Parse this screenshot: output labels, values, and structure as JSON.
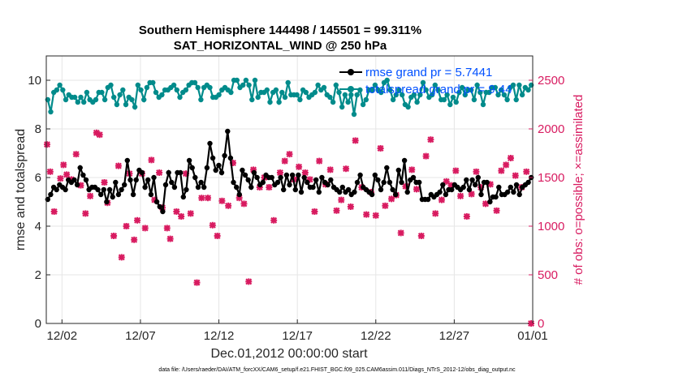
{
  "chart_data": {
    "type": "line",
    "title": "Southern Hemisphere 144498 / 145501 = 99.311%",
    "subtitle": "SAT_HORIZONTAL_WIND @ 250 hPa",
    "xlabel": "Dec.01,2012 00:00:00 start",
    "ylabel": "rmse and totalspread",
    "y2label": "# of obs: o=possible; ×=assimilated",
    "footer": "data file: /Users/raeder/DAI/ATM_forcXX/CAM6_setup/f.e21.FHIST_BGC.f09_025.CAM6assim.011/Diags_NTrS_2012-12/obs_diag_output.nc",
    "xlim": [
      0,
      31
    ],
    "ylim": [
      0,
      11
    ],
    "y2lim": [
      0,
      2750
    ],
    "x_ticks": [
      {
        "x": 1,
        "label": "12/02"
      },
      {
        "x": 6,
        "label": "12/07"
      },
      {
        "x": 11,
        "label": "12/12"
      },
      {
        "x": 16,
        "label": "12/17"
      },
      {
        "x": 21,
        "label": "12/22"
      },
      {
        "x": 26,
        "label": "12/27"
      },
      {
        "x": 31,
        "label": "01/01"
      }
    ],
    "y_ticks": [
      0,
      2,
      4,
      6,
      8,
      10
    ],
    "y2_ticks": [
      0,
      500,
      1000,
      1500,
      2000,
      2500
    ],
    "grid": true,
    "legend_position": "top-right",
    "colors": {
      "rmse": "#000000",
      "spread": "#008b8b",
      "obs": "#d81b60",
      "legend_text": "#0050ff"
    },
    "series": [
      {
        "name": "rmse grand pr = 5.7441",
        "axis": "left",
        "values": [
          5.1,
          5.3,
          5.6,
          5.5,
          5.7,
          5.6,
          5.5,
          5.9,
          5.8,
          5.9,
          5.7,
          6.4,
          6.1,
          5.9,
          5.5,
          5.6,
          5.6,
          5.5,
          5.3,
          5.5,
          5.0,
          5.5,
          5.2,
          5.8,
          5.3,
          5.5,
          5.7,
          6.7,
          5.9,
          5.3,
          5.9,
          6.3,
          6.2,
          5.6,
          5.9,
          5.3,
          6.0,
          5.0,
          4.8,
          4.6,
          5.7,
          6.2,
          5.8,
          5.6,
          6.2,
          6.2,
          5.2,
          5.5,
          6.7,
          6.4,
          6.0,
          5.6,
          5.8,
          5.6,
          6.4,
          7.4,
          6.8,
          6.3,
          6.5,
          6.2,
          6.9,
          7.9,
          6.8,
          5.8,
          5.6,
          5.3,
          6.3,
          6.1,
          5.9,
          5.6,
          6.2,
          6.0,
          5.7,
          5.8,
          6.1,
          6.0,
          6.0,
          5.7,
          5.8,
          6.0,
          5.5,
          6.1,
          5.7,
          6.1,
          5.5,
          6.1,
          5.4,
          6.0,
          5.8,
          5.6,
          5.6,
          5.9,
          5.4,
          6.0,
          5.8,
          5.7,
          5.9,
          5.6,
          5.5,
          5.4,
          5.6,
          5.4,
          5.5,
          5.3,
          5.4,
          5.8,
          6.1,
          5.6,
          5.5,
          5.4,
          5.3,
          6.1,
          5.9,
          5.5,
          5.8,
          6.4,
          5.8,
          5.5,
          5.3,
          6.3,
          5.8,
          6.7,
          5.4,
          5.9,
          6.0,
          5.8,
          5.8,
          5.1,
          5.1,
          5.1,
          5.3,
          5.2,
          5.3,
          5.4,
          5.7,
          5.3,
          5.5,
          5.5,
          5.7,
          5.6,
          5.5,
          5.6,
          5.9,
          5.5,
          5.9,
          5.7,
          6.0,
          5.3,
          5.8,
          5.8,
          5.0,
          5.2,
          5.2,
          5.6,
          5.3,
          5.3,
          5.4,
          5.6,
          5.4,
          5.7,
          5.3,
          5.6,
          5.7,
          5.8,
          6.0
        ]
      },
      {
        "name": "totalspread grand pr = 9.44",
        "axis": "left",
        "values": [
          9.2,
          8.7,
          9.5,
          9.6,
          9.8,
          9.6,
          9.2,
          9.4,
          9.3,
          9.3,
          9.1,
          9.3,
          9.1,
          9.5,
          9.2,
          9.1,
          9.2,
          9.5,
          9.5,
          9.2,
          9.7,
          9.8,
          9.3,
          9.0,
          9.4,
          9.6,
          9.0,
          9.3,
          9.2,
          8.9,
          9.8,
          9.6,
          9.2,
          9.7,
          9.9,
          9.9,
          9.5,
          9.3,
          9.4,
          9.6,
          9.6,
          9.7,
          9.8,
          9.6,
          9.3,
          9.5,
          9.6,
          9.8,
          9.9,
          9.9,
          9.7,
          9.2,
          9.7,
          9.8,
          9.7,
          9.3,
          9.3,
          9.4,
          9.6,
          9.7,
          9.6,
          9.5,
          10.0,
          10.0,
          9.7,
          9.8,
          10.0,
          9.8,
          9.2,
          10.0,
          9.3,
          9.5,
          9.5,
          9.6,
          9.1,
          9.5,
          9.6,
          9.1,
          9.5,
          9.3,
          9.9,
          9.4,
          9.4,
          9.4,
          9.2,
          9.6,
          9.5,
          9.3,
          9.4,
          9.5,
          9.8,
          9.6,
          9.7,
          9.4,
          9.3,
          9.1,
          9.8,
          9.5,
          8.9,
          9.4,
          9.1,
          9.4,
          8.6,
          9.4,
          9.6,
          9.0,
          9.2,
          9.6,
          9.6,
          9.8,
          9.6,
          9.5,
          9.9,
          10.0,
          9.6,
          9.2,
          9.4,
          9.6,
          9.4,
          9.0,
          8.9,
          9.3,
          9.4,
          9.1,
          9.4,
          9.9,
          9.6,
          9.3,
          9.4,
          9.8,
          9.6,
          9.2,
          9.2,
          9.4,
          9.0,
          9.3,
          9.1,
          9.5,
          9.7,
          9.4,
          9.6,
          9.6,
          9.2,
          9.8,
          9.5,
          9.0,
          9.5,
          9.5,
          9.7,
          9.7,
          9.4,
          9.6,
          9.4,
          9.2,
          9.7,
          9.8,
          9.2,
          9.8,
          9.4,
          9.7,
          9.6,
          9.8
        ]
      },
      {
        "name": "# of obs assimilated",
        "axis": "right",
        "x": [
          0.05,
          0.25,
          0.5,
          0.9,
          1.1,
          1.3,
          1.6,
          1.9,
          2.2,
          2.5,
          2.8,
          3.2,
          3.4,
          3.7,
          3.9,
          4.3,
          4.6,
          4.8,
          5.1,
          5.3,
          5.6,
          5.8,
          6.1,
          6.3,
          6.7,
          6.9,
          7.2,
          7.4,
          7.7,
          7.9,
          8.3,
          8.6,
          8.9,
          9.2,
          9.6,
          9.9,
          10.3,
          10.6,
          10.9,
          11.2,
          11.6,
          11.9,
          12.3,
          12.6,
          12.9,
          13.2,
          13.6,
          13.9,
          14.2,
          14.5,
          14.9,
          15.2,
          15.5,
          15.8,
          16.1,
          16.5,
          16.8,
          17.1,
          17.4,
          17.8,
          18.1,
          18.5,
          18.8,
          19.1,
          19.4,
          19.7,
          20.1,
          20.4,
          20.7,
          21.0,
          21.3,
          21.6,
          22.0,
          22.3,
          22.6,
          22.9,
          23.3,
          23.6,
          23.9,
          24.2,
          24.5,
          24.8,
          25.2,
          25.5,
          25.8,
          26.1,
          26.4,
          26.8,
          27.1,
          27.4,
          27.7,
          28.0,
          28.3,
          28.7,
          29.0,
          29.3,
          29.6,
          29.9,
          30.3,
          30.6,
          30.9
        ],
        "values": [
          1840,
          1560,
          1150,
          1490,
          1630,
          1530,
          1480,
          1740,
          1420,
          1130,
          1310,
          1960,
          1940,
          1450,
          1240,
          900,
          1620,
          680,
          1000,
          1540,
          860,
          1060,
          1540,
          980,
          1680,
          1270,
          1550,
          1190,
          980,
          870,
          1150,
          1100,
          1540,
          1130,
          420,
          1290,
          1290,
          1010,
          900,
          1260,
          1210,
          1650,
          1290,
          1230,
          430,
          1580,
          1400,
          1500,
          1400,
          1060,
          1550,
          1670,
          1740,
          1480,
          1610,
          1550,
          1480,
          1150,
          1670,
          1430,
          1580,
          1160,
          1270,
          1590,
          1200,
          1880,
          1400,
          1120,
          1350,
          1110,
          1800,
          1210,
          1280,
          1320,
          930,
          1410,
          1580,
          1380,
          900,
          1720,
          1890,
          1130,
          1270,
          1460,
          1420,
          1570,
          1310,
          1100,
          1330,
          1560,
          1400,
          1230,
          1430,
          1160,
          1570,
          1630,
          1700,
          1520,
          1400,
          1560,
          0
        ],
        "marker": "x"
      }
    ]
  }
}
